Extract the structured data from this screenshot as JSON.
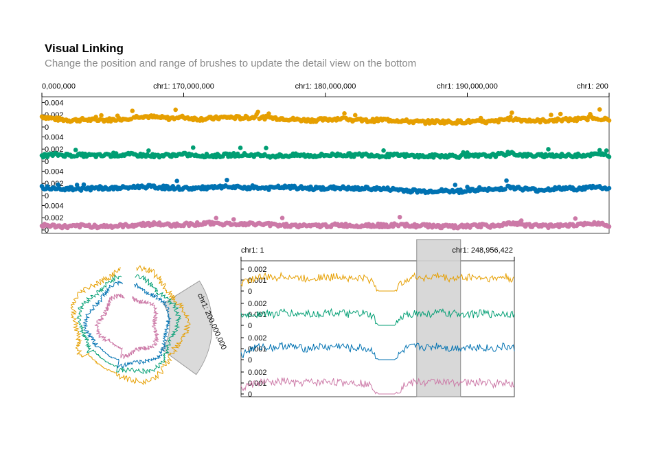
{
  "header": {
    "title": "Visual Linking",
    "subtitle": "Change the position and range of brushes to update the detail view on the bottom"
  },
  "colors": {
    "series": [
      "#E69F00",
      "#009E73",
      "#0072B2",
      "#CC79A7"
    ],
    "brush": "#d4d4d4",
    "axis": "#000000"
  },
  "chart_data": [
    {
      "type": "scatter",
      "view": "top-detail-tracks",
      "x_axis": {
        "ticks": [
          {
            "value": 160000000,
            "label": "0,000,000"
          },
          {
            "value": 170000000,
            "label": "chr1: 170,000,000"
          },
          {
            "value": 180000000,
            "label": "chr1: 180,000,000"
          },
          {
            "value": 190000000,
            "label": "chr1: 190,000,000"
          },
          {
            "value": 200000000,
            "label": "chr1: 200"
          }
        ],
        "xlim": [
          160000000,
          200000000
        ]
      },
      "y_axis": {
        "ylim": [
          0,
          0.0045
        ],
        "ticks": [
          {
            "value": 0.004,
            "label": "0.004"
          },
          {
            "value": 0.002,
            "label": "0.002"
          },
          {
            "value": 0,
            "label": "0"
          }
        ]
      },
      "series": [
        {
          "points": [
            [
              160000000,
              0.0017
            ],
            [
              161000000,
              0.0013
            ],
            [
              162000000,
              0.0011
            ],
            [
              163000000,
              0.0012
            ],
            [
              164000000,
              0.0011
            ],
            [
              165000000,
              0.0012
            ],
            [
              166000000,
              0.0014
            ],
            [
              167000000,
              0.0018
            ],
            [
              168000000,
              0.0016
            ],
            [
              169000000,
              0.0014
            ],
            [
              170000000,
              0.0016
            ],
            [
              171000000,
              0.0013
            ],
            [
              172000000,
              0.0014
            ],
            [
              173000000,
              0.0016
            ],
            [
              174000000,
              0.0015
            ],
            [
              175000000,
              0.0016
            ],
            [
              176000000,
              0.0015
            ],
            [
              177000000,
              0.0014
            ],
            [
              178000000,
              0.0012
            ],
            [
              179000000,
              0.0011
            ],
            [
              180000000,
              0.0012
            ],
            [
              181000000,
              0.0014
            ],
            [
              182000000,
              0.0011
            ],
            [
              183000000,
              0.001
            ],
            [
              184000000,
              0.0012
            ],
            [
              185000000,
              0.0011
            ],
            [
              186000000,
              0.0009
            ],
            [
              187000000,
              0.0008
            ],
            [
              188000000,
              0.0009
            ],
            [
              189000000,
              0.0008
            ],
            [
              190000000,
              0.0009
            ],
            [
              191000000,
              0.0008
            ],
            [
              192000000,
              0.0009
            ],
            [
              193000000,
              0.0014
            ],
            [
              194000000,
              0.0011
            ],
            [
              195000000,
              0.001
            ],
            [
              196000000,
              0.0011
            ],
            [
              197000000,
              0.0012
            ],
            [
              198000000,
              0.0012
            ],
            [
              199000000,
              0.0016
            ],
            [
              200000000,
              0.0011
            ]
          ]
        },
        {
          "points": [
            [
              160000000,
              0.0009
            ],
            [
              161000000,
              0.0011
            ],
            [
              162000000,
              0.001
            ],
            [
              163000000,
              0.001
            ],
            [
              164000000,
              0.0009
            ],
            [
              165000000,
              0.001
            ],
            [
              166000000,
              0.0011
            ],
            [
              167000000,
              0.001
            ],
            [
              168000000,
              0.0009
            ],
            [
              169000000,
              0.001
            ],
            [
              170000000,
              0.0011
            ],
            [
              171000000,
              0.001
            ],
            [
              172000000,
              0.0009
            ],
            [
              173000000,
              0.001
            ],
            [
              174000000,
              0.0011
            ],
            [
              175000000,
              0.001
            ],
            [
              176000000,
              0.0009
            ],
            [
              177000000,
              0.0009
            ],
            [
              178000000,
              0.001
            ],
            [
              179000000,
              0.0009
            ],
            [
              180000000,
              0.001
            ],
            [
              181000000,
              0.0011
            ],
            [
              182000000,
              0.001
            ],
            [
              183000000,
              0.0011
            ],
            [
              184000000,
              0.0009
            ],
            [
              185000000,
              0.001
            ],
            [
              186000000,
              0.0009
            ],
            [
              187000000,
              0.0008
            ],
            [
              188000000,
              0.0009
            ],
            [
              189000000,
              0.0009
            ],
            [
              190000000,
              0.0008
            ],
            [
              191000000,
              0.0009
            ],
            [
              192000000,
              0.001
            ],
            [
              193000000,
              0.0013
            ],
            [
              194000000,
              0.001
            ],
            [
              195000000,
              0.0009
            ],
            [
              196000000,
              0.001
            ],
            [
              197000000,
              0.0009
            ],
            [
              198000000,
              0.001
            ],
            [
              199000000,
              0.0011
            ],
            [
              200000000,
              0.001
            ]
          ]
        },
        {
          "points": [
            [
              160000000,
              0.0013
            ],
            [
              161000000,
              0.0012
            ],
            [
              162000000,
              0.0011
            ],
            [
              163000000,
              0.0011
            ],
            [
              164000000,
              0.0012
            ],
            [
              165000000,
              0.0012
            ],
            [
              166000000,
              0.0013
            ],
            [
              167000000,
              0.0015
            ],
            [
              168000000,
              0.0014
            ],
            [
              169000000,
              0.0013
            ],
            [
              170000000,
              0.0012
            ],
            [
              171000000,
              0.0012
            ],
            [
              172000000,
              0.0013
            ],
            [
              173000000,
              0.0014
            ],
            [
              174000000,
              0.0013
            ],
            [
              175000000,
              0.0013
            ],
            [
              176000000,
              0.0012
            ],
            [
              177000000,
              0.0014
            ],
            [
              178000000,
              0.0013
            ],
            [
              179000000,
              0.0012
            ],
            [
              180000000,
              0.0012
            ],
            [
              181000000,
              0.0013
            ],
            [
              182000000,
              0.0011
            ],
            [
              183000000,
              0.0012
            ],
            [
              184000000,
              0.0011
            ],
            [
              185000000,
              0.001
            ],
            [
              186000000,
              0.0008
            ],
            [
              187000000,
              0.0007
            ],
            [
              188000000,
              0.0008
            ],
            [
              189000000,
              0.0007
            ],
            [
              190000000,
              0.0008
            ],
            [
              191000000,
              0.0009
            ],
            [
              192000000,
              0.001
            ],
            [
              193000000,
              0.0014
            ],
            [
              194000000,
              0.0011
            ],
            [
              195000000,
              0.0009
            ],
            [
              196000000,
              0.0011
            ],
            [
              197000000,
              0.0012
            ],
            [
              198000000,
              0.0011
            ],
            [
              199000000,
              0.0015
            ],
            [
              200000000,
              0.0011
            ]
          ]
        },
        {
          "points": [
            [
              160000000,
              0.0008
            ],
            [
              161000000,
              0.0006
            ],
            [
              162000000,
              0.0005
            ],
            [
              163000000,
              0.0007
            ],
            [
              164000000,
              0.0006
            ],
            [
              165000000,
              0.0006
            ],
            [
              166000000,
              0.0007
            ],
            [
              167000000,
              0.0009
            ],
            [
              168000000,
              0.001
            ],
            [
              169000000,
              0.0008
            ],
            [
              170000000,
              0.0009
            ],
            [
              171000000,
              0.001
            ],
            [
              172000000,
              0.0011
            ],
            [
              173000000,
              0.001
            ],
            [
              174000000,
              0.0009
            ],
            [
              175000000,
              0.001
            ],
            [
              176000000,
              0.0009
            ],
            [
              177000000,
              0.0008
            ],
            [
              178000000,
              0.0007
            ],
            [
              179000000,
              0.0006
            ],
            [
              180000000,
              0.0007
            ],
            [
              181000000,
              0.0008
            ],
            [
              182000000,
              0.0007
            ],
            [
              183000000,
              0.0008
            ],
            [
              184000000,
              0.0007
            ],
            [
              185000000,
              0.0008
            ],
            [
              186000000,
              0.0007
            ],
            [
              187000000,
              0.0007
            ],
            [
              188000000,
              0.0006
            ],
            [
              189000000,
              0.0005
            ],
            [
              190000000,
              0.0006
            ],
            [
              191000000,
              0.0007
            ],
            [
              192000000,
              0.0006
            ],
            [
              193000000,
              0.0012
            ],
            [
              194000000,
              0.0008
            ],
            [
              195000000,
              0.0007
            ],
            [
              196000000,
              0.0006
            ],
            [
              197000000,
              0.0007
            ],
            [
              198000000,
              0.0008
            ],
            [
              199000000,
              0.0012
            ],
            [
              200000000,
              0.0008
            ]
          ]
        }
      ]
    },
    {
      "type": "line",
      "view": "circular-overview",
      "label": "chr1: 200,000,000",
      "brush": [
        160000000,
        200000000
      ]
    },
    {
      "type": "line",
      "view": "bottom-overview-tracks",
      "x_axis": {
        "ticks": [
          {
            "value": 1,
            "label": "chr1: 1"
          },
          {
            "value": 248956422,
            "label": "chr1: 248,956,422"
          }
        ],
        "xlim": [
          1,
          248956422
        ]
      },
      "y_axis": {
        "ylim": [
          0,
          0.0025
        ],
        "ticks": [
          {
            "value": 0.002,
            "label": "0.002"
          },
          {
            "value": 0.001,
            "label": "0.001"
          },
          {
            "value": 0,
            "label": "0"
          }
        ]
      },
      "brush": [
        160000000,
        200000000
      ],
      "series": [
        {
          "x": [
            0,
            10000000,
            20000000,
            30000000,
            40000000,
            50000000,
            60000000,
            70000000,
            80000000,
            90000000,
            100000000,
            110000000,
            120000000,
            125000000,
            140000000,
            150000000,
            160000000,
            170000000,
            180000000,
            190000000,
            200000000,
            210000000,
            220000000,
            230000000,
            240000000,
            248956422
          ],
          "values": [
            0.0007,
            0.0011,
            0.0013,
            0.0012,
            0.0014,
            0.0012,
            0.0011,
            0.0013,
            0.0012,
            0.0014,
            0.0011,
            0.0012,
            0.0009,
            0.0,
            0.0,
            0.0011,
            0.0013,
            0.0012,
            0.0014,
            0.0011,
            0.0012,
            0.0013,
            0.0012,
            0.0011,
            0.0013,
            0.001
          ]
        },
        {
          "x": [
            0,
            10000000,
            20000000,
            30000000,
            40000000,
            50000000,
            60000000,
            70000000,
            80000000,
            90000000,
            100000000,
            110000000,
            120000000,
            125000000,
            140000000,
            150000000,
            160000000,
            170000000,
            180000000,
            190000000,
            200000000,
            210000000,
            220000000,
            230000000,
            240000000,
            248956422
          ],
          "values": [
            0.0008,
            0.001,
            0.0011,
            0.001,
            0.0012,
            0.001,
            0.0011,
            0.001,
            0.0012,
            0.0011,
            0.001,
            0.0011,
            0.0008,
            0.0,
            0.0,
            0.001,
            0.0011,
            0.001,
            0.0012,
            0.001,
            0.0011,
            0.001,
            0.0011,
            0.001,
            0.0011,
            0.001
          ]
        },
        {
          "x": [
            0,
            10000000,
            20000000,
            30000000,
            40000000,
            50000000,
            60000000,
            70000000,
            80000000,
            90000000,
            100000000,
            110000000,
            120000000,
            125000000,
            140000000,
            150000000,
            160000000,
            170000000,
            180000000,
            190000000,
            200000000,
            210000000,
            220000000,
            230000000,
            240000000,
            248956422
          ],
          "values": [
            0.0004,
            0.001,
            0.0012,
            0.0011,
            0.0013,
            0.0011,
            0.001,
            0.0012,
            0.0011,
            0.0013,
            0.001,
            0.0011,
            0.0008,
            0.0,
            0.0,
            0.001,
            0.0012,
            0.0011,
            0.0013,
            0.001,
            0.0011,
            0.0012,
            0.0011,
            0.001,
            0.0012,
            0.001
          ]
        },
        {
          "x": [
            0,
            10000000,
            20000000,
            30000000,
            40000000,
            50000000,
            60000000,
            70000000,
            80000000,
            90000000,
            100000000,
            110000000,
            120000000,
            125000000,
            140000000,
            150000000,
            160000000,
            170000000,
            180000000,
            190000000,
            200000000,
            210000000,
            220000000,
            230000000,
            240000000,
            248956422
          ],
          "values": [
            0.0005,
            0.0009,
            0.0011,
            0.001,
            0.0012,
            0.0009,
            0.0011,
            0.001,
            0.0012,
            0.001,
            0.0011,
            0.001,
            0.0007,
            0.0,
            0.0,
            0.0009,
            0.0011,
            0.001,
            0.0012,
            0.001,
            0.0011,
            0.001,
            0.0011,
            0.0009,
            0.0011,
            0.0009
          ]
        }
      ]
    }
  ]
}
